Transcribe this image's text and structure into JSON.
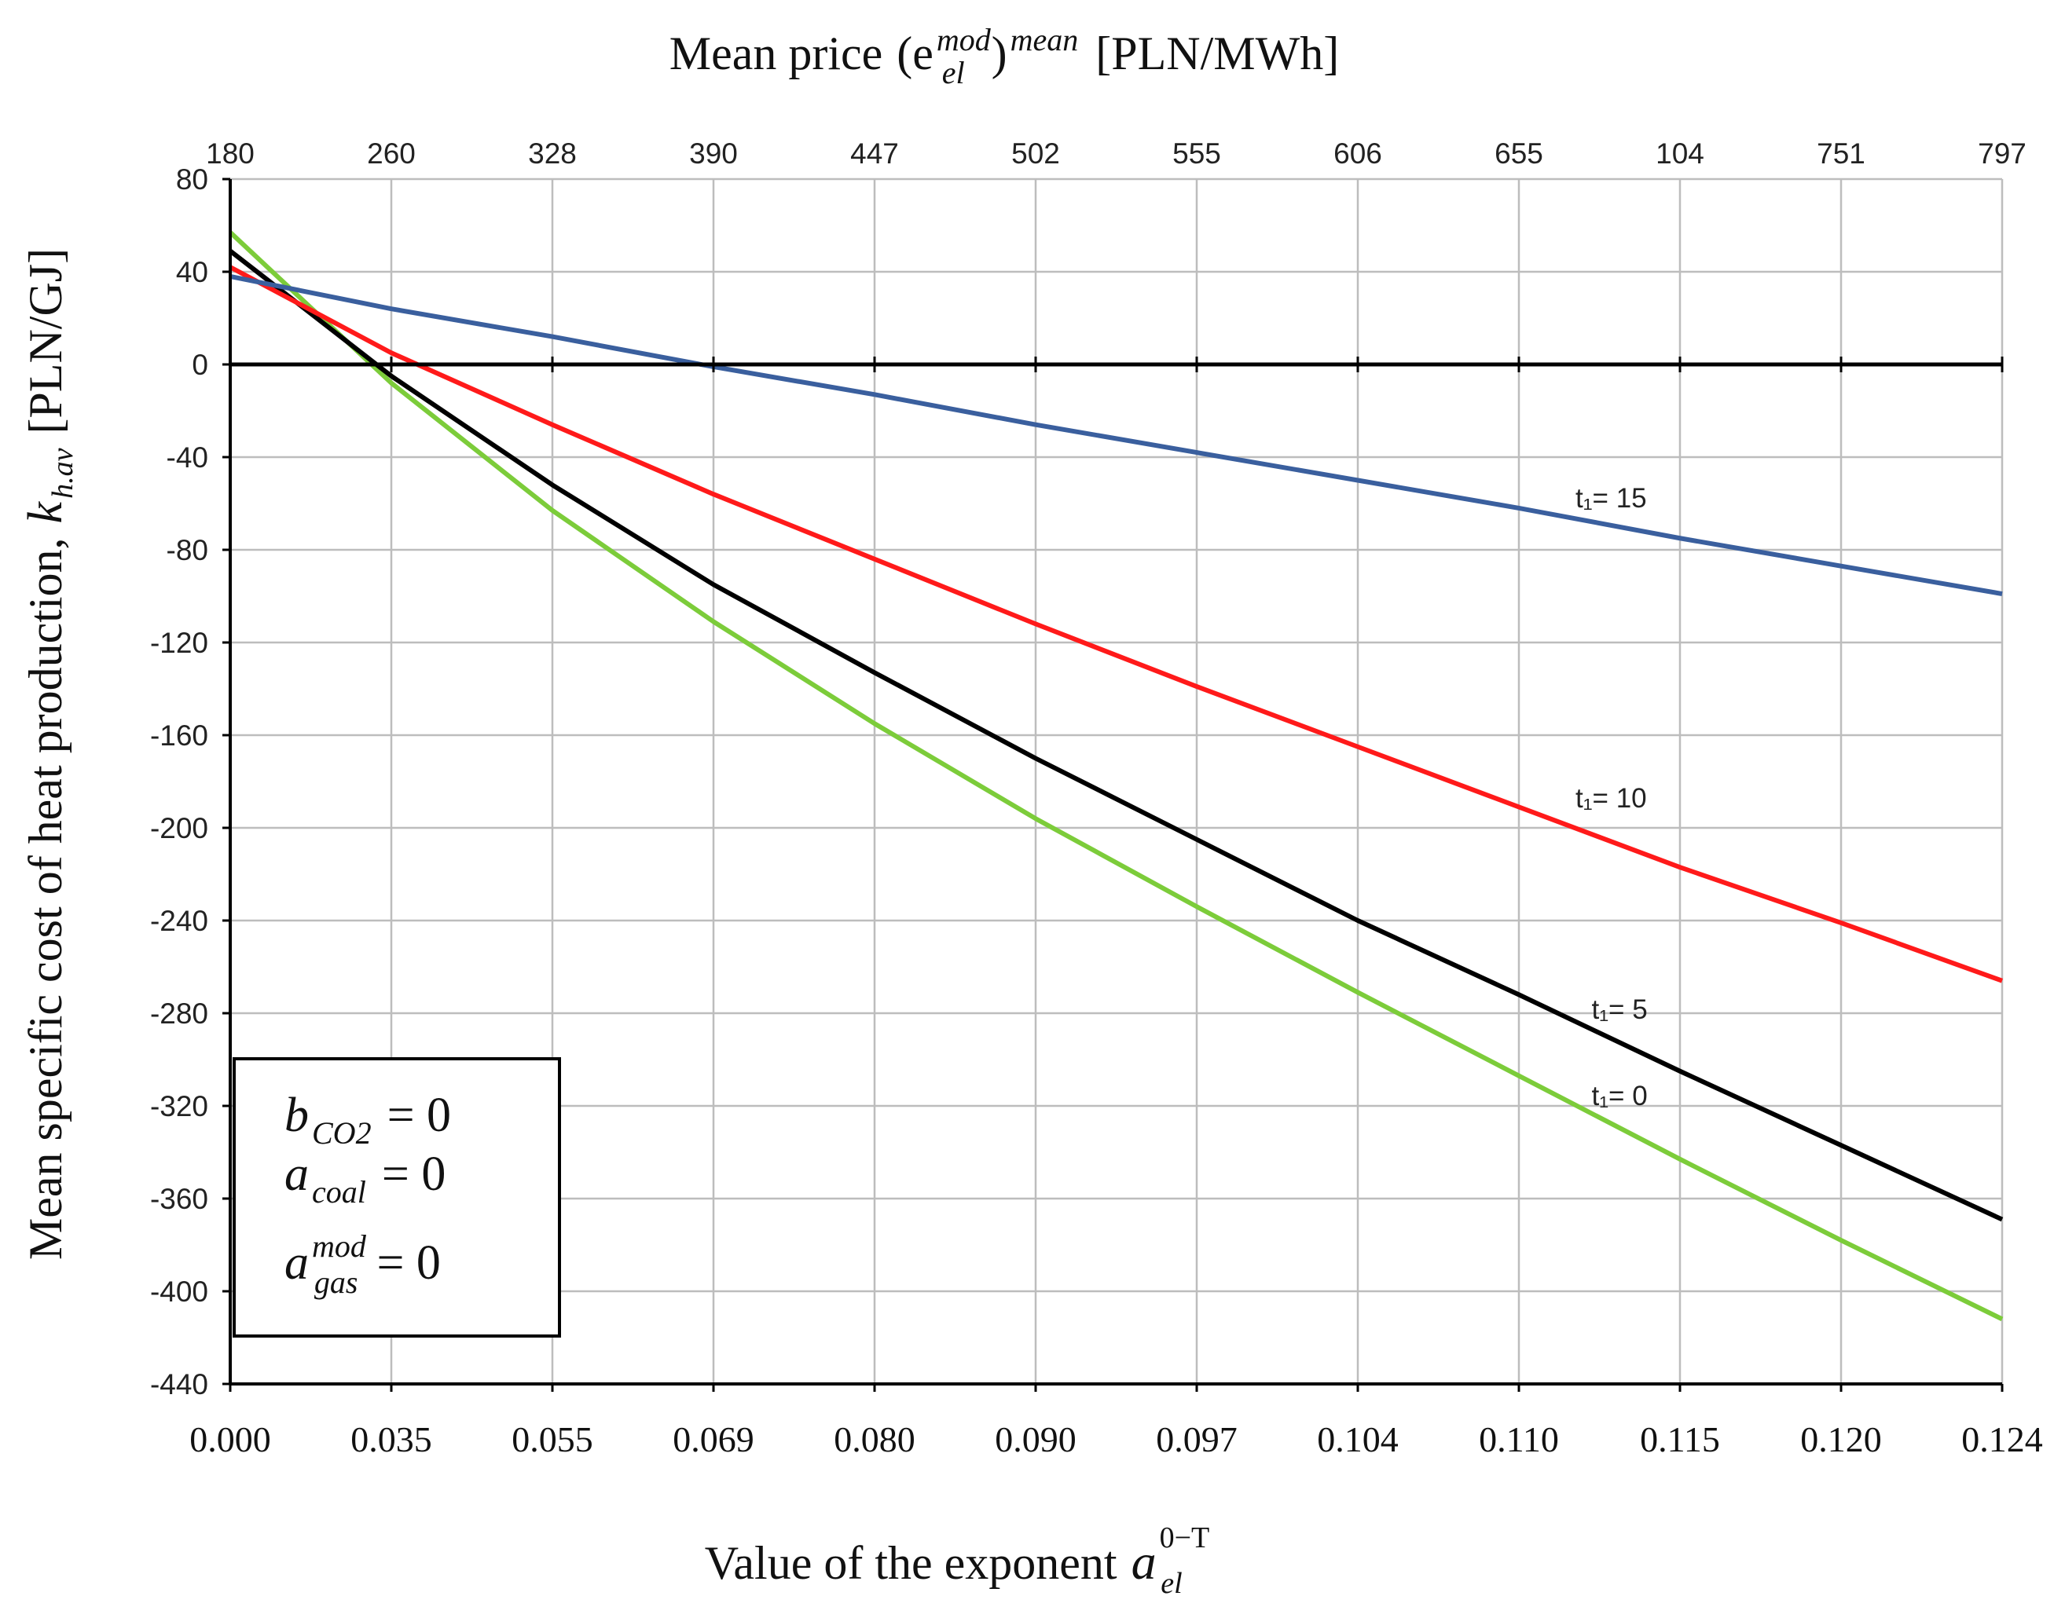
{
  "chart_data": {
    "type": "line",
    "title": "",
    "top_axis": {
      "label_text": "Mean price",
      "label_symbol": "(e",
      "label_sup": "mod",
      "label_sub": "el",
      "label_close": ")",
      "label_sup2": "mean",
      "label_unit": "[PLN/MWh]",
      "ticks": [
        "180",
        "260",
        "328",
        "390",
        "447",
        "502",
        "555",
        "606",
        "655",
        "104",
        "751",
        "797"
      ]
    },
    "x_axis": {
      "label_text": "Value of the exponent",
      "label_symbol": "a",
      "label_sup": "0−T",
      "label_sub": "el",
      "categories": [
        "0.000",
        "0.035",
        "0.055",
        "0.069",
        "0.080",
        "0.090",
        "0.097",
        "0.104",
        "0.110",
        "0.115",
        "0.120",
        "0.124"
      ]
    },
    "y_axis": {
      "label_text": "Mean specific cost of heat production,",
      "label_symbol": "k",
      "label_sub": "h.av",
      "label_unit": "[PLN/GJ]",
      "ylim": [
        -440,
        80
      ],
      "ticks": [
        80,
        40,
        0,
        -40,
        -80,
        -120,
        -160,
        -200,
        -240,
        -280,
        -320,
        -360,
        -400,
        -440
      ]
    },
    "grid": true,
    "series": [
      {
        "name": "t₁= 15",
        "color": "#3a5f9e",
        "values": [
          38,
          24,
          12,
          -1,
          -13,
          -26,
          -38,
          -50,
          -62,
          -75,
          -87,
          -99
        ]
      },
      {
        "name": "t₁= 10",
        "color": "#ff1a1a",
        "values": [
          42,
          5,
          -26,
          -56,
          -84,
          -112,
          -139,
          -165,
          -191,
          -217,
          -241,
          -266
        ]
      },
      {
        "name": "t₁= 5",
        "color": "#000000",
        "values": [
          49,
          -5,
          -52,
          -95,
          -133,
          -170,
          -205,
          -240,
          -272,
          -305,
          -337,
          -369
        ]
      },
      {
        "name": "t₁= 0",
        "color": "#7ccc3a",
        "values": [
          57,
          -8,
          -63,
          -111,
          -155,
          -196,
          -234,
          -271,
          -307,
          -343,
          -378,
          -412
        ]
      }
    ],
    "annotation_box": {
      "lines": [
        {
          "symbol": "b",
          "sub": "CO2",
          "sup": "",
          "rhs": "= 0"
        },
        {
          "symbol": "a",
          "sub": "coal",
          "sup": "",
          "rhs": "= 0"
        },
        {
          "symbol": "a",
          "sub": "gas",
          "sup": "mod",
          "rhs": "= 0"
        }
      ]
    }
  }
}
